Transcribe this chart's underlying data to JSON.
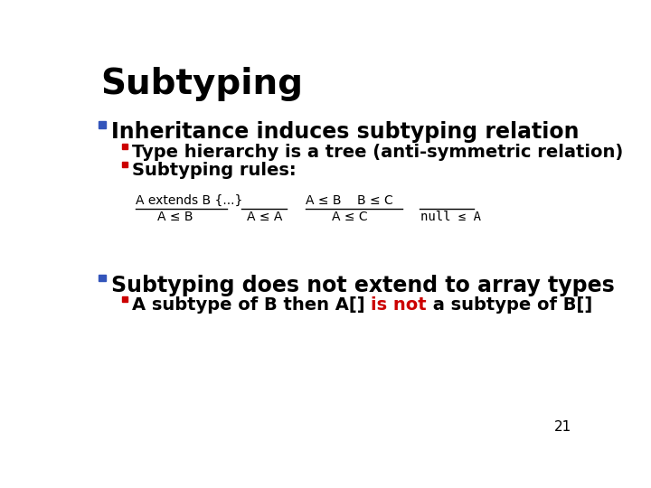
{
  "title": "Subtyping",
  "background_color": "#ffffff",
  "title_color": "#000000",
  "title_fontsize": 28,
  "bullet1_text": "Inheritance induces subtyping relation",
  "bullet1_color": "#000000",
  "bullet1_fontsize": 17,
  "bullet1_marker_color": "#3355bb",
  "bullet2a_text": "Type hierarchy is a tree (anti-symmetric relation)",
  "bullet2b_text": "Subtyping rules:",
  "bullet2_color": "#000000",
  "bullet2_fontsize": 14,
  "bullet2_marker_color": "#cc0000",
  "bullet3_text": "Subtyping does not extend to array types",
  "bullet3_color": "#000000",
  "bullet3_fontsize": 17,
  "bullet3_marker_color": "#3355bb",
  "bullet4_text1": "A subtype of B then A[] ",
  "bullet4_text2": "is not",
  "bullet4_text3": " a subtype of B[]",
  "bullet4_color": "#000000",
  "bullet4_red_color": "#cc0000",
  "bullet4_fontsize": 14,
  "bullet4_marker_color": "#cc0000",
  "rule1_numerator": "A extends B {...}",
  "rule1_denominator": "A ≤ B",
  "rule2_denominator": "A ≤ A",
  "rule3_numerator": "A ≤ B    B ≤ C",
  "rule3_denominator": "A ≤ C",
  "rule4_denominator": "null ≤ A",
  "rule_fontsize": 10,
  "rule_color": "#000000",
  "page_number": "21",
  "page_number_fontsize": 11
}
